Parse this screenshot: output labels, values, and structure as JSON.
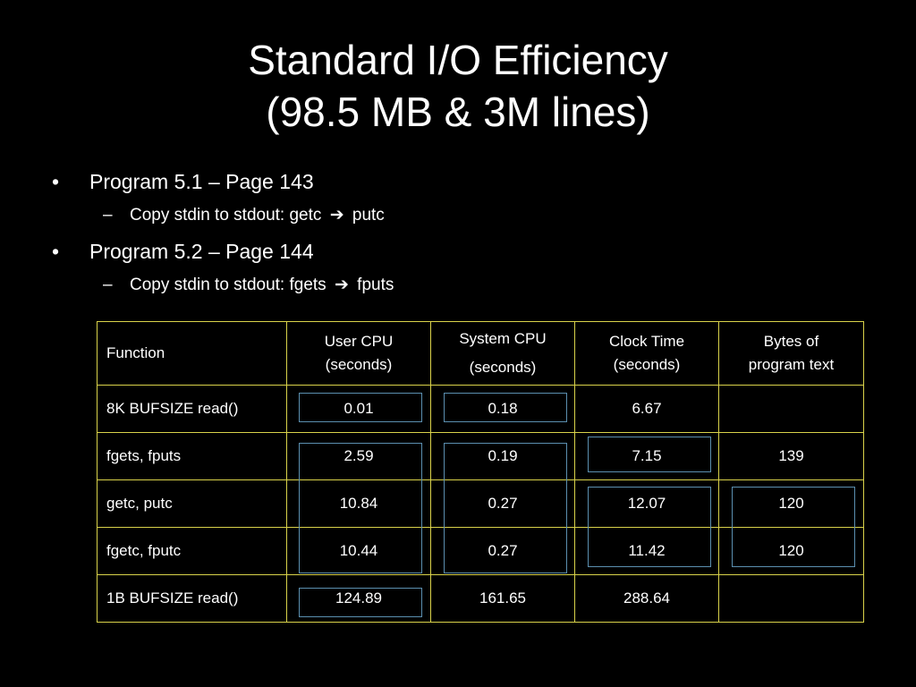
{
  "slide": {
    "title": "Standard I/O Efficiency",
    "subtitle": "(98.5 MB & 3M lines)"
  },
  "bullets": [
    {
      "text": "Program 5.1 – Page 143",
      "sub": {
        "prefix": "Copy stdin to stdout: getc",
        "arrow": "➔",
        "suffix": "putc"
      }
    },
    {
      "text": "Program 5.2 – Page 144",
      "sub": {
        "prefix": "Copy stdin to stdout: fgets",
        "arrow": "➔",
        "suffix": "fputs"
      }
    }
  ],
  "table": {
    "headers": [
      {
        "line1": "Function",
        "line2": ""
      },
      {
        "line1": "User CPU",
        "line2": "(seconds)"
      },
      {
        "line1": "System CPU",
        "line2": "(seconds)"
      },
      {
        "line1": "Clock Time",
        "line2": "(seconds)"
      },
      {
        "line1": "Bytes of",
        "line2": "program text"
      }
    ],
    "rows": [
      [
        "8K BUFSIZE read()",
        "0.01",
        "0.18",
        "6.67",
        ""
      ],
      [
        "fgets, fputs",
        "2.59",
        "0.19",
        "7.15",
        "139"
      ],
      [
        "getc, putc",
        "10.84",
        "0.27",
        "12.07",
        "120"
      ],
      [
        "fgetc, fputc",
        "10.44",
        "0.27",
        "11.42",
        "120"
      ],
      [
        "1B BUFSIZE read()",
        "124.89",
        "161.65",
        "288.64",
        ""
      ]
    ]
  },
  "colors": {
    "background": "#000000",
    "text": "#ffffff",
    "table_border": "#d9d24a",
    "highlight_box": "#5b8fb0"
  }
}
